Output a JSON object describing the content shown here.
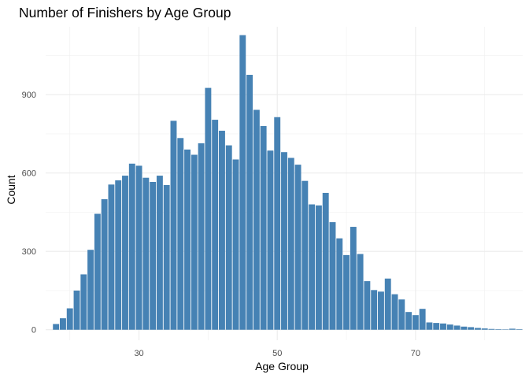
{
  "chart_data": {
    "type": "bar",
    "title": "Number of Finishers by Age Group",
    "xlabel": "Age Group",
    "ylabel": "Count",
    "xlim": [
      16.5,
      85.5
    ],
    "ylim": [
      -40,
      1160
    ],
    "x_ticks": [
      30,
      50,
      70
    ],
    "x_minor_ticks": [
      20,
      40,
      60,
      80
    ],
    "y_ticks": [
      0,
      300,
      600,
      900
    ],
    "y_minor_ticks": [
      150,
      450,
      750,
      1050
    ],
    "grid": true,
    "bar_color": "#4682B4",
    "ages": [
      18,
      19,
      20,
      21,
      22,
      23,
      24,
      25,
      26,
      27,
      28,
      29,
      30,
      31,
      32,
      33,
      34,
      35,
      36,
      37,
      38,
      39,
      40,
      41,
      42,
      43,
      44,
      45,
      46,
      47,
      48,
      49,
      50,
      51,
      52,
      53,
      54,
      55,
      56,
      57,
      58,
      59,
      60,
      61,
      62,
      63,
      64,
      65,
      66,
      67,
      68,
      69,
      70,
      71,
      72,
      73,
      74,
      75,
      76,
      77,
      78,
      79,
      80,
      81,
      82,
      83,
      84,
      85
    ],
    "values": [
      22,
      44,
      82,
      150,
      212,
      306,
      444,
      500,
      556,
      572,
      590,
      636,
      628,
      582,
      566,
      590,
      554,
      800,
      734,
      690,
      670,
      714,
      926,
      804,
      762,
      706,
      652,
      1128,
      976,
      842,
      780,
      686,
      814,
      680,
      658,
      632,
      570,
      480,
      476,
      524,
      412,
      350,
      286,
      394,
      290,
      186,
      152,
      146,
      196,
      136,
      116,
      68,
      56,
      80,
      28,
      26,
      24,
      20,
      16,
      12,
      10,
      7,
      5,
      3,
      2,
      1,
      4,
      2
    ]
  }
}
